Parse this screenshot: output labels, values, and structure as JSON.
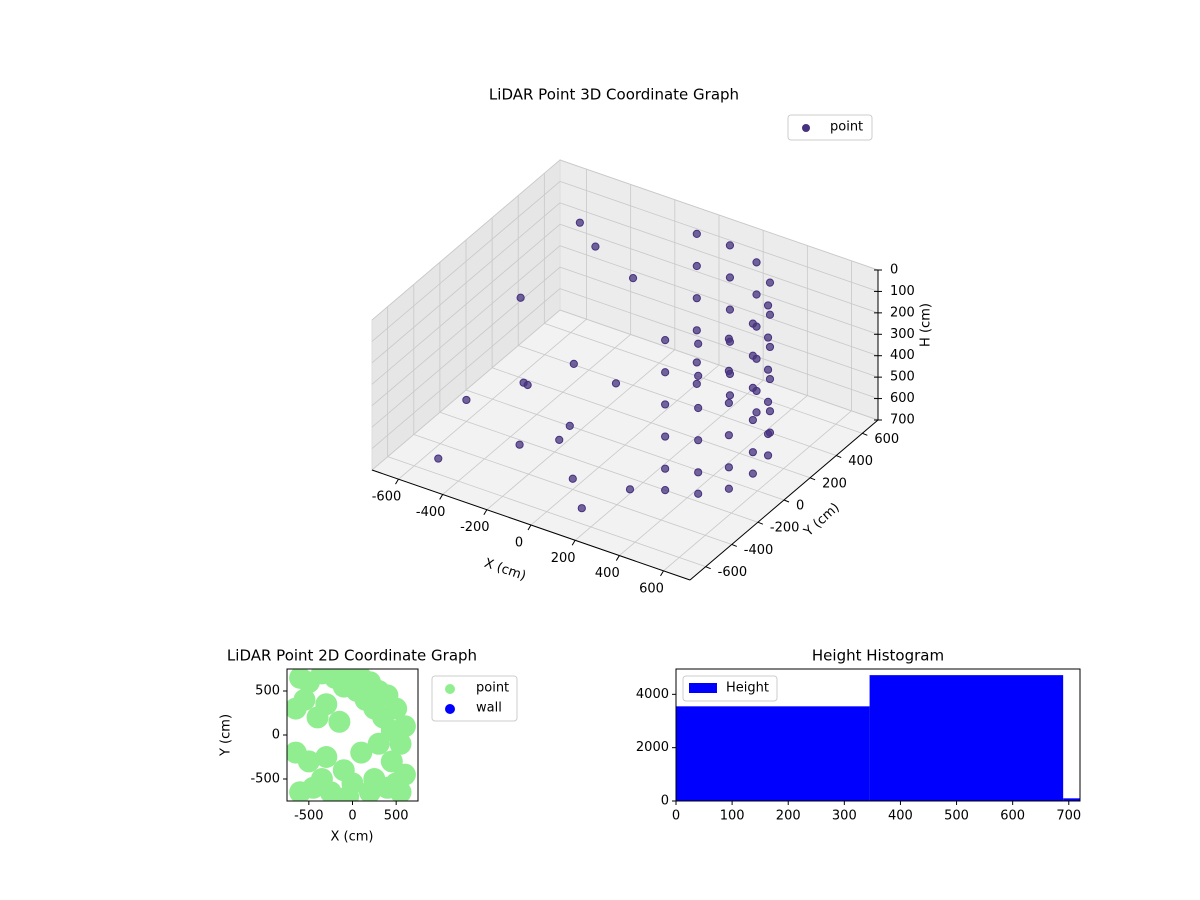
{
  "chart_data": [
    {
      "type": "scatter3d",
      "title": "LiDAR Point 3D Coordinate Graph",
      "xlabel": "X (cm)",
      "ylabel": "Y (cm)",
      "zlabel": "H (cm)",
      "xlim": [
        -720,
        720
      ],
      "ylim": [
        -720,
        720
      ],
      "zlim": [
        700,
        0
      ],
      "xticks": [
        -600,
        -400,
        -200,
        0,
        200,
        400,
        600
      ],
      "yticks": [
        -600,
        -400,
        -200,
        0,
        200,
        400,
        600
      ],
      "zticks": [
        0,
        100,
        200,
        300,
        400,
        500,
        600,
        700
      ],
      "grid": true,
      "legend": "upper right",
      "series": [
        {
          "name": "point",
          "color": "#46327e",
          "x": [
            0,
            0,
            0,
            0,
            0,
            0,
            150,
            150,
            150,
            150,
            150,
            150,
            300,
            300,
            300,
            300,
            300,
            300,
            420,
            420,
            420,
            420,
            420,
            420,
            500,
            500,
            500,
            500,
            500,
            500,
            520,
            520,
            520,
            520,
            520,
            520,
            500,
            500,
            500,
            500,
            500,
            500,
            420,
            420,
            420,
            420,
            420,
            420,
            300,
            300,
            300,
            300,
            300,
            300,
            -650,
            -600,
            -500,
            -400,
            -350,
            -300,
            -250,
            -200,
            -150,
            -100,
            0,
            100,
            200,
            -500,
            -400,
            -550
          ],
          "y": [
            550,
            550,
            550,
            550,
            550,
            550,
            550,
            550,
            550,
            550,
            550,
            550,
            500,
            500,
            500,
            500,
            500,
            500,
            400,
            400,
            400,
            400,
            400,
            400,
            250,
            250,
            250,
            250,
            250,
            250,
            100,
            100,
            100,
            100,
            100,
            100,
            -50,
            -50,
            -50,
            -50,
            -50,
            -50,
            -150,
            -150,
            -150,
            -150,
            -150,
            -150,
            -200,
            -200,
            -200,
            -200,
            -200,
            -200,
            300,
            -200,
            100,
            -100,
            200,
            -300,
            0,
            400,
            -250,
            100,
            -400,
            -500,
            -300,
            500,
            450,
            -500
          ],
          "z": [
            0,
            150,
            300,
            450,
            600,
            700,
            0,
            150,
            300,
            450,
            600,
            700,
            0,
            150,
            300,
            450,
            600,
            700,
            0,
            150,
            300,
            450,
            600,
            700,
            0,
            150,
            300,
            450,
            600,
            700,
            0,
            150,
            300,
            450,
            600,
            700,
            0,
            150,
            300,
            450,
            600,
            700,
            0,
            150,
            300,
            450,
            600,
            700,
            0,
            150,
            300,
            450,
            600,
            700,
            400,
            600,
            650,
            500,
            550,
            650,
            700,
            200,
            600,
            500,
            650,
            700,
            680,
            100,
            150,
            700
          ]
        }
      ]
    },
    {
      "type": "scatter",
      "title": "LiDAR Point 2D Coordinate Graph",
      "xlabel": "X (cm)",
      "ylabel": "Y (cm)",
      "xlim": [
        -750,
        750
      ],
      "ylim": [
        -750,
        750
      ],
      "xticks": [
        -500,
        0,
        500
      ],
      "yticks": [
        -500,
        0,
        500
      ],
      "legend": "outside right",
      "series": [
        {
          "name": "point",
          "color": "#90ee90",
          "x": [
            -600,
            -500,
            -350,
            -200,
            -100,
            0,
            100,
            200,
            300,
            400,
            500,
            600,
            -650,
            -550,
            -400,
            -300,
            -150,
            50,
            150,
            250,
            350,
            450,
            550,
            -650,
            -500,
            -300,
            -100,
            100,
            300,
            450,
            600,
            -450,
            -250,
            0,
            200,
            400,
            550,
            -600,
            -350,
            -50,
            250,
            500
          ],
          "y": [
            650,
            600,
            700,
            650,
            550,
            700,
            650,
            600,
            500,
            450,
            300,
            100,
            300,
            400,
            200,
            350,
            150,
            500,
            400,
            300,
            200,
            50,
            -100,
            -200,
            -300,
            -250,
            -400,
            -200,
            -100,
            -300,
            -450,
            -600,
            -650,
            -550,
            -650,
            -600,
            -650,
            -650,
            -500,
            -700,
            -500,
            -550
          ]
        },
        {
          "name": "wall",
          "color": "#0000ff",
          "x": [],
          "y": []
        }
      ]
    },
    {
      "type": "histogram",
      "title": "Height Histogram",
      "bins": [
        0,
        345,
        690,
        720
      ],
      "counts": [
        3550,
        4720,
        100
      ],
      "xlim": [
        0,
        720
      ],
      "ylim": [
        0,
        4950
      ],
      "xticks": [
        0,
        100,
        200,
        300,
        400,
        500,
        600,
        700
      ],
      "yticks": [
        0,
        2000,
        4000
      ],
      "legend": "upper left",
      "series_name": "Height",
      "color": "#0000ff"
    }
  ]
}
